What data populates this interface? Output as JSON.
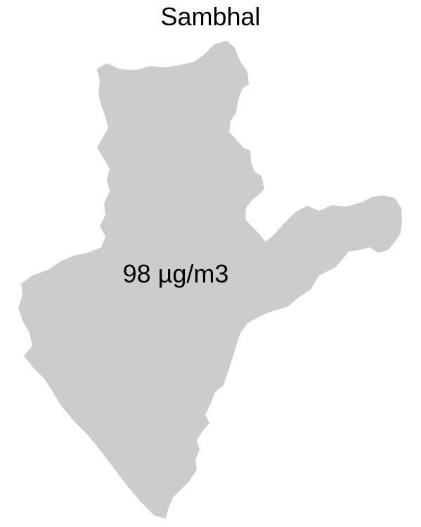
{
  "map": {
    "title": "Sambhal",
    "region": {
      "label": "98 µg/m3",
      "fill_color": "#cccccc"
    }
  }
}
